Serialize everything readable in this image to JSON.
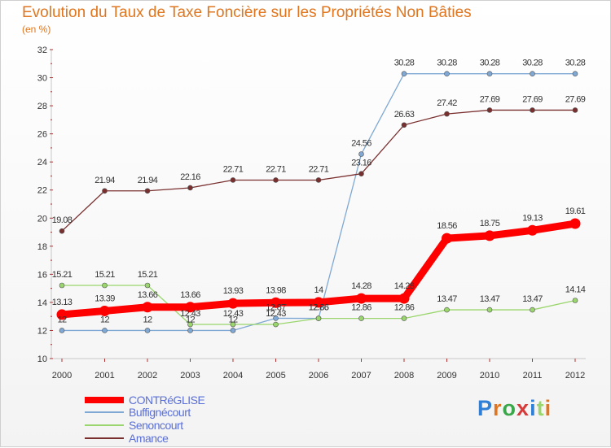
{
  "chart_data": {
    "type": "line",
    "title": "Evolution du Taux de Taxe Foncière sur les Propriétés Non Bâties",
    "unit_label": "(en %)",
    "xlabel": "",
    "ylabel": "(en %)",
    "ylim": [
      10,
      32
    ],
    "yticks": [
      10,
      12,
      14,
      16,
      18,
      20,
      22,
      24,
      26,
      28,
      30,
      32
    ],
    "categories": [
      "2000",
      "2001",
      "2002",
      "2003",
      "2004",
      "2005",
      "2006",
      "2007",
      "2008",
      "2009",
      "2010",
      "2011",
      "2012"
    ],
    "grid": false,
    "legend_position": "bottom-left",
    "series": [
      {
        "name": "CONTRéGLISE",
        "color": "#ff0000",
        "highlight": true,
        "values": [
          13.13,
          13.39,
          13.66,
          13.66,
          13.93,
          13.98,
          14,
          14.28,
          14.28,
          18.56,
          18.75,
          19.13,
          19.61
        ]
      },
      {
        "name": "Buffignécourt",
        "color": "#7fa8d4",
        "highlight": false,
        "values": [
          12,
          12,
          12,
          12,
          12,
          12.87,
          12.86,
          24.56,
          30.28,
          30.28,
          30.28,
          30.28,
          30.28
        ]
      },
      {
        "name": "Senoncourt",
        "color": "#9ad66d",
        "highlight": false,
        "values": [
          15.21,
          15.21,
          15.21,
          12.43,
          12.43,
          12.43,
          12.86,
          12.86,
          12.86,
          13.47,
          13.47,
          13.47,
          14.14
        ]
      },
      {
        "name": "Amance",
        "color": "#7a2f2f",
        "highlight": false,
        "values": [
          19.08,
          21.94,
          21.94,
          22.16,
          22.71,
          22.71,
          22.71,
          23.16,
          26.63,
          27.42,
          27.69,
          27.69,
          27.69
        ]
      }
    ]
  },
  "branding": {
    "logo_text": "Proxiti"
  }
}
